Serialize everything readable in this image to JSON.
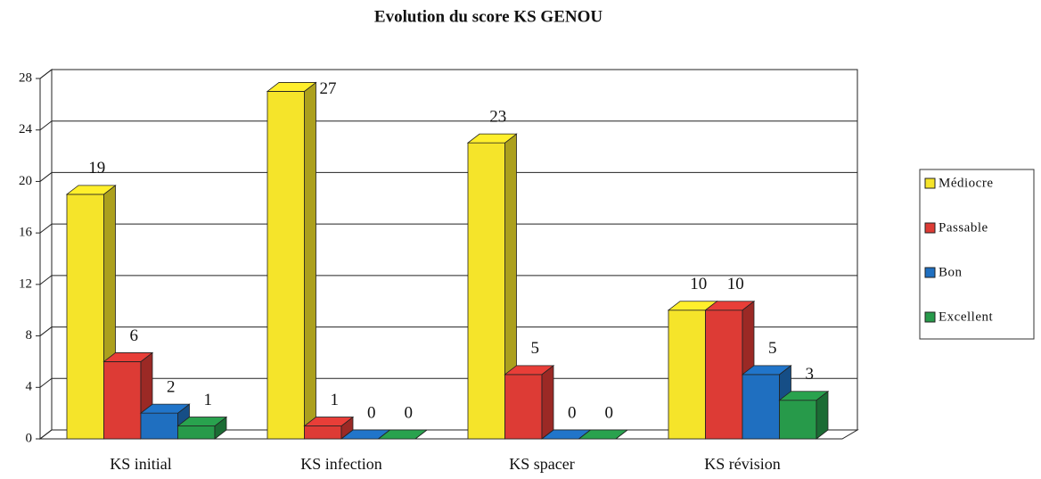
{
  "chart_data": {
    "type": "bar3d",
    "title": "Evolution du score KS GENOU",
    "categories": [
      "KS initial",
      "KS infection",
      "KS spacer",
      "KS révision"
    ],
    "series": [
      {
        "name": "Médiocre",
        "color": "#f5e42a",
        "values": [
          19,
          27,
          23,
          10
        ]
      },
      {
        "name": "Passable",
        "color": "#dd3b35",
        "values": [
          6,
          1,
          5,
          10
        ]
      },
      {
        "name": "Bon",
        "color": "#1f6fc0",
        "values": [
          2,
          0,
          0,
          5
        ]
      },
      {
        "name": "Excellent",
        "color": "#279a4a",
        "values": [
          1,
          0,
          0,
          3
        ]
      }
    ],
    "ylim": [
      0,
      28
    ],
    "yticks": [
      0,
      4,
      8,
      12,
      16,
      20,
      24,
      28
    ],
    "grid": true,
    "legend": "right"
  }
}
